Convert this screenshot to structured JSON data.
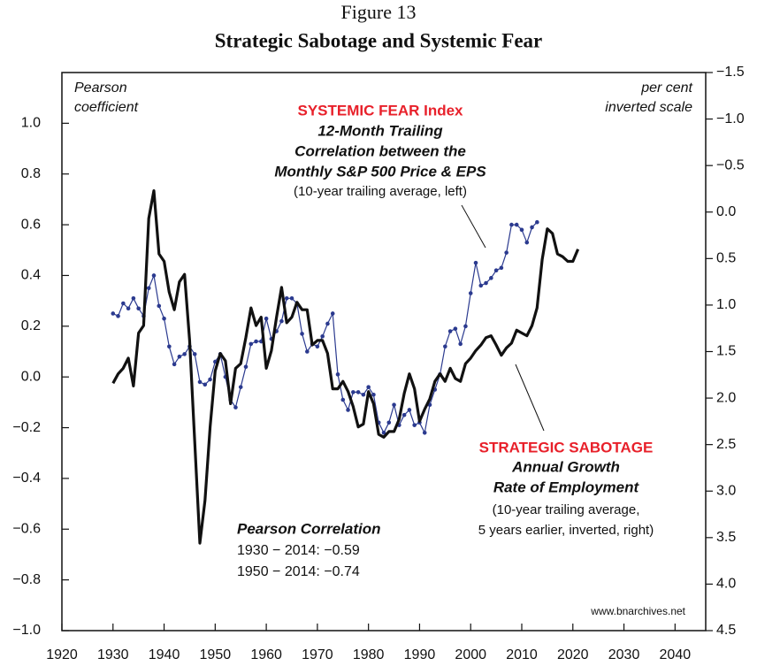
{
  "chart_data": {
    "type": "line",
    "figure_label": "Figure 13",
    "title": "Strategic Sabotage and Systemic Fear",
    "y_label": [
      "Pearson",
      "coefficient"
    ],
    "y2_label": [
      "per cent",
      "inverted scale"
    ],
    "annotations": {
      "fear_title": "SYSTEMIC FEAR Index",
      "fear_lines": [
        "12-Month Trailing",
        "Correlation between the",
        "Monthly S&P 500 Price & EPS"
      ],
      "fear_note": "(10-year trailing average, left)",
      "sabotage_title": "STRATEGIC SABOTAGE",
      "sabotage_lines": [
        "Annual Growth",
        "Rate of Employment"
      ],
      "sabotage_notes": [
        "(10-year trailing average,",
        "5 years earlier, inverted, right)"
      ],
      "corr_title": "Pearson Correlation",
      "corr_lines": [
        "1930 − 2014:  −0.59",
        "1950 − 2014:  −0.74"
      ],
      "source": "www.bnarchives.net"
    },
    "xlim": [
      1920,
      2046
    ],
    "xticks": [
      1920,
      1930,
      1940,
      1950,
      1960,
      1970,
      1980,
      1990,
      2000,
      2010,
      2020,
      2030,
      2040
    ],
    "ylim": [
      -1.0,
      1.2
    ],
    "yticks": [
      {
        "value": -1.0,
        "label": "−1.0"
      },
      {
        "value": -0.8,
        "label": "−0.8"
      },
      {
        "value": -0.6,
        "label": "−0.6"
      },
      {
        "value": -0.4,
        "label": "−0.4"
      },
      {
        "value": -0.2,
        "label": "−0.2"
      },
      {
        "value": 0,
        "label": "0.0"
      },
      0.2,
      0.4,
      0.6,
      0.8,
      {
        "value": 1.0,
        "label": "1.0"
      }
    ],
    "y2lim": [
      -1.5,
      4.5
    ],
    "y2_inverted": true,
    "y2ticks": [
      {
        "value": -1.5,
        "label": "−1.5"
      },
      {
        "value": -1.0,
        "label": "−1.0"
      },
      {
        "value": -0.5,
        "label": "−0.5"
      },
      {
        "value": 0,
        "label": "0.0"
      },
      0.5,
      {
        "value": 1.0,
        "label": "1.0"
      },
      1.5,
      {
        "value": 2.0,
        "label": "2.0"
      },
      2.5,
      {
        "value": 3.0,
        "label": "3.0"
      },
      3.5,
      {
        "value": 4.0,
        "label": "4.0"
      },
      4.5
    ],
    "series": [
      {
        "name": "SYSTEMIC FEAR Index",
        "color": "#2b3a8f",
        "axis": "y",
        "markers": true,
        "x": [
          1930,
          1931,
          1932,
          1933,
          1934,
          1935,
          1936,
          1937,
          1938,
          1939,
          1940,
          1941,
          1942,
          1943,
          1944,
          1945,
          1946,
          1947,
          1948,
          1949,
          1950,
          1951,
          1952,
          1953,
          1954,
          1955,
          1956,
          1957,
          1958,
          1959,
          1960,
          1961,
          1962,
          1963,
          1964,
          1965,
          1966,
          1967,
          1968,
          1969,
          1970,
          1971,
          1972,
          1973,
          1974,
          1975,
          1976,
          1977,
          1978,
          1979,
          1980,
          1981,
          1982,
          1983,
          1984,
          1985,
          1986,
          1987,
          1988,
          1989,
          1990,
          1991,
          1992,
          1993,
          1994,
          1995,
          1996,
          1997,
          1998,
          1999,
          2000,
          2001,
          2002,
          2003,
          2004,
          2005,
          2006,
          2007,
          2008,
          2009,
          2010,
          2011,
          2012,
          2013
        ],
        "values": [
          0.25,
          0.24,
          0.29,
          0.27,
          0.31,
          0.27,
          0.24,
          0.35,
          0.4,
          0.28,
          0.23,
          0.12,
          0.05,
          0.08,
          0.09,
          0.12,
          0.09,
          -0.02,
          -0.03,
          -0.01,
          0.06,
          0.09,
          0.0,
          -0.09,
          -0.12,
          -0.04,
          0.04,
          0.13,
          0.14,
          0.14,
          0.23,
          0.15,
          0.18,
          0.22,
          0.31,
          0.31,
          0.29,
          0.17,
          0.1,
          0.13,
          0.12,
          0.16,
          0.21,
          0.25,
          0.01,
          -0.09,
          -0.13,
          -0.06,
          -0.06,
          -0.07,
          -0.04,
          -0.07,
          -0.18,
          -0.22,
          -0.18,
          -0.11,
          -0.19,
          -0.15,
          -0.13,
          -0.19,
          -0.18,
          -0.22,
          -0.11,
          -0.05,
          0.01,
          0.12,
          0.18,
          0.19,
          0.13,
          0.2,
          0.33,
          0.45,
          0.36,
          0.37,
          0.39,
          0.42,
          0.43,
          0.49,
          0.6,
          0.6,
          0.58,
          0.53,
          0.59,
          0.61
        ]
      },
      {
        "name": "STRATEGIC SABOTAGE",
        "color": "#111111",
        "axis": "y2",
        "markers": false,
        "x": [
          1930,
          1931,
          1932,
          1933,
          1934,
          1935,
          1936,
          1937,
          1938,
          1939,
          1940,
          1941,
          1942,
          1943,
          1944,
          1945,
          1946,
          1947,
          1948,
          1949,
          1950,
          1951,
          1952,
          1953,
          1954,
          1955,
          1956,
          1957,
          1958,
          1959,
          1960,
          1961,
          1962,
          1963,
          1964,
          1965,
          1966,
          1967,
          1968,
          1969,
          1970,
          1971,
          1972,
          1973,
          1974,
          1975,
          1976,
          1977,
          1978,
          1979,
          1980,
          1981,
          1982,
          1983,
          1984,
          1985,
          1986,
          1987,
          1988,
          1989,
          1990,
          1991,
          1992,
          1993,
          1994,
          1995,
          1996,
          1997,
          1998,
          1999,
          2000,
          2001,
          2002,
          2003,
          2004,
          2005,
          2006,
          2007,
          2008,
          2009,
          2010,
          2011,
          2012,
          2013,
          2014,
          2015,
          2016,
          2017,
          2018,
          2019,
          2020,
          2021
        ],
        "values": [
          1.84,
          1.74,
          1.68,
          1.57,
          1.87,
          1.3,
          1.22,
          0.07,
          -0.23,
          0.45,
          0.53,
          0.86,
          1.05,
          0.75,
          0.67,
          1.38,
          2.47,
          3.56,
          3.1,
          2.31,
          1.71,
          1.52,
          1.6,
          2.06,
          1.68,
          1.63,
          1.35,
          1.03,
          1.22,
          1.13,
          1.68,
          1.49,
          1.13,
          0.81,
          1.19,
          1.13,
          0.97,
          1.05,
          1.05,
          1.43,
          1.38,
          1.38,
          1.52,
          1.9,
          1.9,
          1.82,
          1.93,
          2.09,
          2.31,
          2.28,
          1.93,
          2.06,
          2.39,
          2.42,
          2.36,
          2.36,
          2.23,
          1.95,
          1.74,
          1.9,
          2.25,
          2.12,
          2.01,
          1.82,
          1.74,
          1.82,
          1.68,
          1.79,
          1.82,
          1.63,
          1.57,
          1.49,
          1.43,
          1.35,
          1.33,
          1.43,
          1.54,
          1.46,
          1.41,
          1.27,
          1.3,
          1.33,
          1.22,
          1.03,
          0.51,
          0.18,
          0.23,
          0.45,
          0.48,
          0.53,
          0.53,
          0.4
        ]
      }
    ]
  }
}
